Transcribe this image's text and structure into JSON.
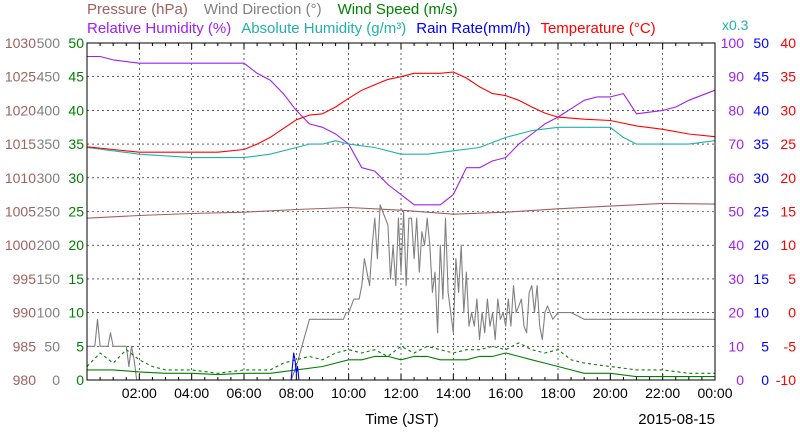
{
  "chart_data": {
    "type": "line",
    "legend": {
      "row1": [
        {
          "text": "Pressure (hPa)",
          "color": "#a06060"
        },
        {
          "text": "Wind Direction (°)",
          "color": "#808080"
        },
        {
          "text": "Wind Speed (m/s)",
          "color": "#008000"
        }
      ],
      "row2": [
        {
          "text": "Relative Humidity (%)",
          "color": "#a020f0"
        },
        {
          "text": "Absolute Humidity (g/m³)",
          "color": "#20b2aa",
          "suffix": "x0.3"
        },
        {
          "text": "Rain Rate(mm/h)",
          "color": "#0000ff"
        },
        {
          "text": "Temperature (°C)",
          "color": "#ff0000"
        }
      ]
    },
    "xlabel": "Time (JST)",
    "date": "2015-08-15",
    "x_ticks": [
      "02:00",
      "04:00",
      "06:00",
      "08:00",
      "10:00",
      "12:00",
      "14:00",
      "16:00",
      "18:00",
      "20:00",
      "22:00",
      "00:00"
    ],
    "xlim_hours": [
      0,
      24
    ],
    "left_axes": [
      {
        "name": "Pressure (hPa)",
        "color": "#a06060",
        "min": 980,
        "max": 1030,
        "ticks": [
          "980",
          "985",
          "990",
          "995",
          "1000",
          "1005",
          "1010",
          "1015",
          "1020",
          "1025",
          "1030"
        ]
      },
      {
        "name": "Wind Direction (°)",
        "color": "#808080",
        "min": 0,
        "max": 500,
        "ticks": [
          "0",
          "50",
          "100",
          "150",
          "200",
          "250",
          "300",
          "350",
          "400",
          "450",
          "500"
        ]
      },
      {
        "name": "Wind Speed (m/s)",
        "color": "#008000",
        "min": 0,
        "max": 50,
        "ticks": [
          "0",
          "5",
          "10",
          "15",
          "20",
          "25",
          "30",
          "35",
          "40",
          "45",
          "50"
        ]
      }
    ],
    "right_axes": [
      {
        "name": "Relative Humidity (%)",
        "color": "#a020f0",
        "min": 0,
        "max": 100,
        "ticks": [
          "0",
          "10",
          "20",
          "30",
          "40",
          "50",
          "60",
          "70",
          "80",
          "90",
          "100"
        ]
      },
      {
        "name": "Rain Rate(mm/h)",
        "color": "#0000ff",
        "min": 0,
        "max": 50,
        "ticks": [
          "0",
          "5",
          "10",
          "15",
          "20",
          "25",
          "30",
          "35",
          "40",
          "45",
          "50"
        ]
      },
      {
        "name": "Temperature (°C)",
        "color": "#ff0000",
        "min": -10,
        "max": 40,
        "ticks": [
          "-10",
          "-5",
          "0",
          "5",
          "10",
          "15",
          "20",
          "25",
          "30",
          "35",
          "40"
        ]
      }
    ],
    "series": [
      {
        "name": "Pressure (hPa)",
        "color": "#a06060",
        "axis": "left0",
        "x": [
          0.0,
          2.0,
          4.0,
          6.0,
          8.0,
          10.0,
          12.0,
          14.0,
          16.0,
          18.0,
          20.0,
          22.0,
          24.0
        ],
        "y": [
          1004.0,
          1004.4,
          1004.7,
          1004.9,
          1005.3,
          1005.6,
          1005.2,
          1004.6,
          1004.9,
          1005.4,
          1005.8,
          1006.2,
          1006.1
        ]
      },
      {
        "name": "Relative Humidity (%)",
        "color": "#a020f0",
        "axis": "right0",
        "x": [
          0.0,
          0.5,
          1.0,
          2.0,
          4.0,
          6.0,
          6.5,
          7.0,
          7.5,
          8.0,
          8.5,
          9.0,
          9.5,
          10.0,
          10.5,
          11.0,
          11.5,
          12.0,
          12.5,
          13.0,
          13.5,
          14.0,
          14.5,
          15.0,
          15.5,
          16.0,
          16.5,
          17.0,
          17.5,
          18.0,
          19.0,
          19.5,
          20.0,
          20.5,
          21.0,
          22.0,
          22.5,
          23.0,
          24.0
        ],
        "y": [
          96,
          96,
          95,
          94,
          94,
          94,
          91,
          89,
          85,
          80,
          76,
          75,
          73,
          70,
          63,
          62,
          58,
          55,
          52,
          52,
          52,
          55,
          63,
          63,
          65,
          66,
          70,
          73,
          76,
          78,
          83,
          84,
          84,
          85,
          79,
          80,
          81,
          83,
          86
        ]
      },
      {
        "name": "Absolute Humidity (g/m³)",
        "color": "#20b2aa",
        "axis": "right0",
        "x": [
          0.0,
          1.0,
          2.0,
          4.0,
          6.0,
          7.0,
          8.0,
          8.5,
          9.0,
          9.5,
          10.0,
          11.0,
          12.0,
          13.0,
          14.0,
          15.0,
          16.0,
          17.0,
          18.0,
          19.0,
          20.0,
          20.5,
          21.0,
          22.0,
          23.0,
          24.0
        ],
        "y": [
          69,
          68,
          67,
          66,
          66,
          67,
          69,
          70,
          70,
          71,
          70,
          69,
          67,
          67,
          68,
          69,
          72,
          74,
          75,
          75,
          75,
          72,
          70,
          70,
          70,
          71
        ]
      },
      {
        "name": "Temperature (°C)",
        "color": "#ff0000",
        "axis": "right2",
        "x": [
          0.0,
          1.0,
          2.0,
          3.0,
          4.0,
          5.0,
          6.0,
          6.5,
          7.0,
          7.5,
          8.0,
          8.5,
          9.0,
          9.5,
          10.0,
          10.5,
          11.0,
          11.5,
          12.0,
          12.5,
          13.0,
          13.5,
          14.0,
          14.5,
          15.0,
          15.5,
          16.0,
          16.5,
          17.0,
          17.5,
          18.0,
          19.0,
          20.0,
          21.0,
          22.0,
          23.0,
          24.0
        ],
        "y": [
          24.6,
          24.2,
          23.8,
          23.8,
          23.8,
          23.8,
          24.2,
          25.0,
          26.0,
          27.3,
          28.6,
          29.3,
          29.5,
          30.5,
          31.8,
          33.0,
          33.8,
          34.6,
          35.0,
          35.5,
          35.5,
          35.5,
          35.7,
          34.8,
          33.5,
          32.5,
          32.2,
          31.5,
          30.5,
          29.6,
          29.0,
          28.7,
          28.5,
          27.7,
          27.2,
          26.5,
          26.1
        ]
      },
      {
        "name": "Wind Direction (°)",
        "color": "#808080",
        "axis": "left1",
        "x": [
          0.0,
          0.3,
          0.4,
          0.5,
          0.8,
          0.9,
          1.0,
          1.5,
          1.6,
          1.7,
          1.8,
          1.9,
          2.0,
          3.0,
          6.0,
          7.5,
          7.8,
          8.0,
          8.5,
          9.0,
          9.1,
          9.2,
          9.3,
          9.8,
          9.9,
          10.0,
          10.2,
          10.4,
          10.5,
          10.6,
          10.8,
          10.9,
          11.0,
          11.1,
          11.2,
          11.5,
          11.6,
          11.7,
          11.8,
          11.9,
          12.0,
          12.1,
          12.2,
          12.3,
          12.4,
          12.5,
          12.6,
          12.7,
          12.8,
          12.9,
          13.0,
          13.1,
          13.2,
          13.3,
          13.4,
          13.5,
          13.6,
          13.7,
          13.8,
          13.9,
          14.0,
          14.1,
          14.2,
          14.3,
          14.4,
          14.5,
          14.6,
          14.7,
          14.8,
          14.9,
          15.0,
          15.1,
          15.2,
          15.3,
          15.4,
          15.5,
          15.6,
          15.7,
          15.8,
          15.9,
          16.0,
          16.1,
          16.2,
          16.3,
          16.4,
          16.5,
          16.6,
          16.7,
          16.8,
          16.9,
          17.0,
          17.1,
          17.2,
          17.3,
          17.4,
          17.5,
          17.6,
          17.7,
          17.8,
          18.0,
          18.2,
          18.5,
          19.0,
          20.0,
          22.0,
          24.0
        ],
        "y": [
          50,
          50,
          90,
          50,
          50,
          70,
          50,
          50,
          20,
          50,
          30,
          0,
          0,
          0,
          0,
          0,
          0,
          20,
          90,
          90,
          90,
          90,
          90,
          90,
          100,
          100,
          120,
          120,
          140,
          180,
          140,
          200,
          240,
          180,
          260,
          230,
          150,
          200,
          140,
          240,
          160,
          250,
          140,
          240,
          240,
          180,
          240,
          160,
          220,
          200,
          240,
          200,
          130,
          160,
          70,
          200,
          120,
          240,
          130,
          100,
          70,
          180,
          130,
          200,
          100,
          160,
          80,
          100,
          80,
          120,
          60,
          100,
          70,
          120,
          80,
          100,
          60,
          120,
          90,
          100,
          80,
          120,
          80,
          140,
          100,
          110,
          120,
          80,
          70,
          130,
          140,
          100,
          140,
          80,
          60,
          100,
          110,
          100,
          90,
          100,
          100,
          100,
          90,
          90,
          90,
          90
        ]
      },
      {
        "name": "Wind Speed (m/s)",
        "color": "#008000",
        "axis": "left2",
        "x": [
          0.0,
          1.0,
          2.0,
          3.0,
          4.0,
          5.0,
          6.0,
          7.0,
          8.0,
          9.0,
          9.5,
          10.0,
          10.5,
          11.0,
          11.5,
          12.0,
          12.5,
          13.0,
          13.5,
          14.0,
          14.5,
          15.0,
          15.5,
          16.0,
          16.5,
          17.0,
          17.5,
          18.0,
          18.5,
          19.0,
          20.0,
          21.0,
          22.0,
          23.0,
          24.0
        ],
        "y": [
          1.5,
          1.5,
          1.2,
          1.0,
          1.0,
          0.8,
          1.0,
          1.0,
          1.5,
          2.0,
          2.5,
          3.0,
          3.0,
          3.5,
          3.5,
          3.0,
          3.5,
          3.5,
          3.0,
          3.0,
          3.0,
          3.5,
          3.5,
          4.0,
          3.5,
          3.0,
          2.5,
          2.0,
          1.5,
          1.0,
          1.0,
          0.5,
          0.5,
          0.5,
          0.5
        ]
      },
      {
        "name": "Wind Speed gust (m/s)",
        "color": "#008000",
        "axis": "left2",
        "dashed": true,
        "x": [
          0.0,
          0.5,
          1.0,
          1.5,
          2.0,
          2.5,
          3.0,
          4.0,
          5.0,
          6.0,
          7.0,
          7.5,
          8.0,
          8.5,
          9.0,
          9.5,
          10.0,
          10.5,
          11.0,
          11.5,
          12.0,
          12.5,
          13.0,
          13.5,
          14.0,
          14.5,
          15.0,
          15.5,
          16.0,
          16.5,
          17.0,
          17.5,
          18.0,
          18.5,
          19.0,
          20.0,
          21.0,
          22.0,
          23.0,
          24.0
        ],
        "y": [
          2.0,
          4.0,
          2.5,
          4.5,
          3.0,
          2.0,
          1.5,
          1.5,
          1.0,
          1.5,
          1.5,
          2.5,
          3.0,
          3.5,
          3.0,
          4.0,
          4.5,
          4.0,
          4.5,
          3.5,
          5.0,
          4.0,
          5.0,
          4.5,
          4.0,
          4.5,
          4.5,
          5.0,
          4.5,
          5.5,
          4.5,
          4.0,
          4.5,
          3.0,
          2.5,
          2.0,
          1.5,
          1.5,
          1.0,
          1.0
        ]
      },
      {
        "name": "Rain Rate(mm/h)",
        "color": "#0000ff",
        "axis": "right1",
        "x": [
          0.0,
          7.8,
          7.85,
          7.9,
          7.95,
          8.0,
          8.05,
          8.1,
          24.0
        ],
        "y": [
          0,
          0,
          2,
          4,
          3,
          1,
          2,
          0,
          0
        ]
      }
    ]
  }
}
